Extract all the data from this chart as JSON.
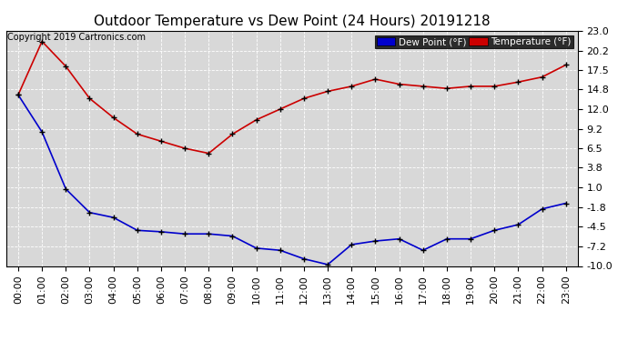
{
  "title": "Outdoor Temperature vs Dew Point (24 Hours) 20191218",
  "copyright": "Copyright 2019 Cartronics.com",
  "x_labels": [
    "00:00",
    "01:00",
    "02:00",
    "03:00",
    "04:00",
    "05:00",
    "06:00",
    "07:00",
    "08:00",
    "09:00",
    "10:00",
    "11:00",
    "12:00",
    "13:00",
    "14:00",
    "15:00",
    "16:00",
    "17:00",
    "18:00",
    "19:00",
    "20:00",
    "21:00",
    "22:00",
    "23:00"
  ],
  "temperature": [
    14.0,
    21.5,
    18.0,
    13.5,
    10.8,
    8.5,
    7.5,
    6.5,
    5.8,
    8.5,
    10.5,
    12.0,
    13.5,
    14.5,
    15.2,
    16.2,
    15.5,
    15.2,
    14.9,
    15.2,
    15.2,
    15.8,
    16.5,
    18.2
  ],
  "dew_point": [
    14.0,
    8.8,
    0.8,
    -2.5,
    -3.2,
    -5.0,
    -5.2,
    -5.5,
    -5.5,
    -5.8,
    -7.5,
    -7.8,
    -9.0,
    -9.8,
    -7.0,
    -6.5,
    -6.2,
    -7.8,
    -6.2,
    -6.2,
    -5.0,
    -4.2,
    -2.0,
    -1.2
  ],
  "ylim": [
    -10.0,
    23.0
  ],
  "yticks": [
    -10.0,
    -7.2,
    -4.5,
    -1.8,
    1.0,
    3.8,
    6.5,
    9.2,
    12.0,
    14.8,
    17.5,
    20.2,
    23.0
  ],
  "temp_color": "#cc0000",
  "dew_color": "#0000cc",
  "bg_color": "#ffffff",
  "plot_bg_color": "#d8d8d8",
  "grid_color": "#ffffff",
  "title_fontsize": 11,
  "copyright_fontsize": 7,
  "tick_fontsize": 8,
  "legend_temp_label": "Temperature (°F)",
  "legend_dew_label": "Dew Point (°F)",
  "legend_dew_bg": "#0000cc",
  "legend_temp_bg": "#cc0000",
  "legend_text_color": "#ffffff"
}
